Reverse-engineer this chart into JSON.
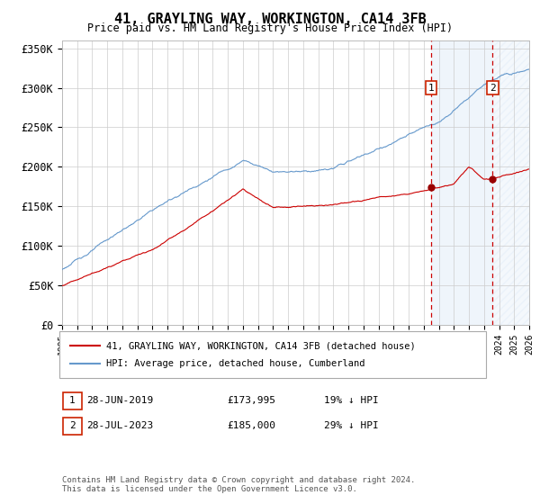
{
  "title": "41, GRAYLING WAY, WORKINGTON, CA14 3FB",
  "subtitle": "Price paid vs. HM Land Registry's House Price Index (HPI)",
  "legend_line1": "41, GRAYLING WAY, WORKINGTON, CA14 3FB (detached house)",
  "legend_line2": "HPI: Average price, detached house, Cumberland",
  "footer1": "Contains HM Land Registry data © Crown copyright and database right 2024.",
  "footer2": "This data is licensed under the Open Government Licence v3.0.",
  "sale1_date": "28-JUN-2019",
  "sale1_price": "£173,995",
  "sale1_hpi": "19% ↓ HPI",
  "sale1_year": 2019.5,
  "sale2_date": "28-JUL-2023",
  "sale2_price": "£185,000",
  "sale2_hpi": "29% ↓ HPI",
  "sale2_year": 2023.58,
  "sale1_price_val": 173995,
  "sale2_price_val": 185000,
  "ylim": [
    0,
    360000
  ],
  "xlim_start": 1995,
  "xlim_end": 2026,
  "red_color": "#cc0000",
  "blue_color": "#6699cc",
  "dashed_color": "#cc0000",
  "background_color": "#ffffff",
  "grid_color": "#cccccc",
  "span1_color": "#ddeeff",
  "span2_color": "#ddeeff"
}
